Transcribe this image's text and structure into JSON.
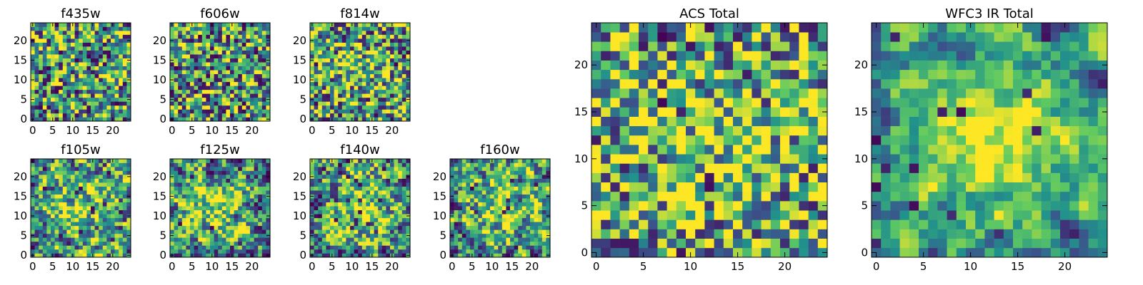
{
  "chart_data": [
    {
      "type": "heatmap",
      "title": "f435w",
      "rows": 25,
      "cols": 25,
      "ticks": [
        0,
        5,
        10,
        15,
        20
      ],
      "intensity": 0.55,
      "center_peak": 0.0,
      "seed": 11,
      "smooth": 0
    },
    {
      "type": "heatmap",
      "title": "f606w",
      "rows": 25,
      "cols": 25,
      "ticks": [
        0,
        5,
        10,
        15,
        20
      ],
      "intensity": 0.55,
      "center_peak": 0.0,
      "seed": 23,
      "smooth": 0
    },
    {
      "type": "heatmap",
      "title": "f814w",
      "rows": 25,
      "cols": 25,
      "ticks": [
        0,
        5,
        10,
        15,
        20
      ],
      "intensity": 0.55,
      "center_peak": 0.15,
      "seed": 37,
      "smooth": 0
    },
    {
      "type": "heatmap",
      "title": "f105w",
      "rows": 25,
      "cols": 25,
      "ticks": [
        0,
        5,
        10,
        15,
        20
      ],
      "intensity": 0.5,
      "center_peak": 0.3,
      "seed": 41,
      "smooth": 1
    },
    {
      "type": "heatmap",
      "title": "f125w",
      "rows": 25,
      "cols": 25,
      "ticks": [
        0,
        5,
        10,
        15,
        20
      ],
      "intensity": 0.5,
      "center_peak": 0.3,
      "seed": 53,
      "smooth": 1
    },
    {
      "type": "heatmap",
      "title": "f140w",
      "rows": 25,
      "cols": 25,
      "ticks": [
        0,
        5,
        10,
        15,
        20
      ],
      "intensity": 0.5,
      "center_peak": 0.35,
      "seed": 67,
      "smooth": 1
    },
    {
      "type": "heatmap",
      "title": "f160w",
      "rows": 25,
      "cols": 25,
      "ticks": [
        0,
        5,
        10,
        15,
        20
      ],
      "intensity": 0.5,
      "center_peak": 0.35,
      "seed": 79,
      "smooth": 1
    },
    {
      "type": "heatmap",
      "title": "ACS Total",
      "rows": 25,
      "cols": 25,
      "ticks": [
        0,
        5,
        10,
        15,
        20
      ],
      "intensity": 0.6,
      "center_peak": 0.15,
      "seed": 97,
      "smooth": 0
    },
    {
      "type": "heatmap",
      "title": "WFC3 IR Total",
      "rows": 25,
      "cols": 25,
      "ticks": [
        0,
        5,
        10,
        15,
        20
      ],
      "intensity": 0.5,
      "center_peak": 0.45,
      "seed": 113,
      "smooth": 2
    }
  ],
  "colormap": [
    "#440154",
    "#3b528b",
    "#21918c",
    "#5ec962",
    "#fde725"
  ]
}
